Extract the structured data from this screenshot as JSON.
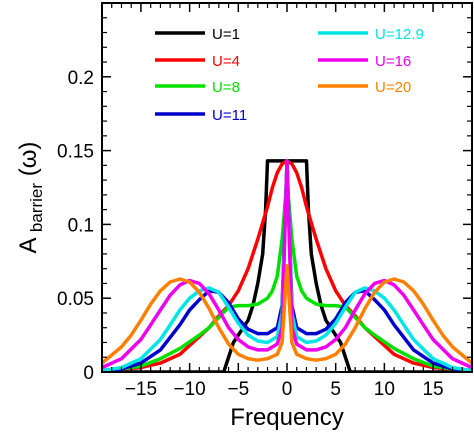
{
  "chart_data": {
    "type": "line",
    "xlabel": "Frequency",
    "ylabel_main": "A",
    "ylabel_sub": "barrier",
    "ylabel_arg": "(ω)",
    "xlim": [
      -19,
      19
    ],
    "ylim": [
      0,
      0.25
    ],
    "xticks": [
      -15,
      -10,
      -5,
      0,
      5,
      10,
      15
    ],
    "xtick_labels": [
      "−15",
      "−10",
      "−5",
      "0",
      "5",
      "10",
      "15"
    ],
    "yticks": [
      0,
      0.05,
      0.1,
      0.15,
      0.2
    ],
    "ytick_labels": [
      "0",
      "0.05",
      "0.1",
      "0.15",
      "0.2"
    ],
    "grid": false,
    "legend_placement": "top",
    "series": [
      {
        "name": "U=1",
        "color": "#000000",
        "x": [
          -19,
          -6.5,
          -6.0,
          -5.5,
          -5.0,
          -4.5,
          -4.0,
          -3.5,
          -3.0,
          -2.5,
          -2.2,
          -2.0,
          0.0,
          2.0,
          2.2,
          2.5,
          3.0,
          3.5,
          4.0,
          4.5,
          5.0,
          5.5,
          6.0,
          6.5,
          19
        ],
        "y": [
          0,
          0,
          0.01,
          0.02,
          0.025,
          0.03,
          0.035,
          0.045,
          0.06,
          0.08,
          0.11,
          0.143,
          0.143,
          0.143,
          0.11,
          0.08,
          0.06,
          0.045,
          0.035,
          0.03,
          0.025,
          0.02,
          0.01,
          0,
          0
        ]
      },
      {
        "name": "U=4",
        "color": "#ff0000",
        "x": [
          -19,
          -17,
          -15,
          -13,
          -11,
          -9,
          -8,
          -7,
          -6,
          -5,
          -4,
          -3,
          -2,
          -1.5,
          -1,
          -0.5,
          0,
          0.5,
          1,
          1.5,
          2,
          3,
          4,
          5,
          6,
          7,
          8,
          9,
          11,
          13,
          15,
          17,
          19
        ],
        "y": [
          0.001,
          0.002,
          0.003,
          0.006,
          0.012,
          0.024,
          0.03,
          0.038,
          0.045,
          0.055,
          0.07,
          0.09,
          0.112,
          0.125,
          0.135,
          0.141,
          0.143,
          0.141,
          0.135,
          0.125,
          0.112,
          0.09,
          0.07,
          0.055,
          0.045,
          0.038,
          0.03,
          0.024,
          0.012,
          0.006,
          0.003,
          0.002,
          0.001
        ]
      },
      {
        "name": "U=8",
        "color": "#00e000",
        "x": [
          -19,
          -17,
          -15,
          -13,
          -11,
          -9,
          -8,
          -7,
          -6,
          -5,
          -4,
          -3,
          -2,
          -1.5,
          -1,
          -0.5,
          0,
          0.5,
          1,
          1.5,
          2,
          3,
          4,
          5,
          6,
          7,
          8,
          9,
          11,
          13,
          15,
          17,
          19
        ],
        "y": [
          0.001,
          0.002,
          0.004,
          0.009,
          0.016,
          0.025,
          0.03,
          0.037,
          0.044,
          0.045,
          0.045,
          0.046,
          0.05,
          0.055,
          0.065,
          0.09,
          0.13,
          0.09,
          0.065,
          0.055,
          0.05,
          0.046,
          0.045,
          0.045,
          0.044,
          0.037,
          0.03,
          0.025,
          0.016,
          0.009,
          0.004,
          0.002,
          0.001
        ]
      },
      {
        "name": "U=11",
        "color": "#0000cc",
        "x": [
          -19,
          -17,
          -15,
          -13,
          -11,
          -10,
          -9,
          -8,
          -7,
          -6,
          -5,
          -4,
          -3,
          -2,
          -1,
          -0.5,
          0,
          0.5,
          1,
          2,
          3,
          4,
          5,
          6,
          7,
          8,
          9,
          10,
          11,
          13,
          15,
          17,
          19
        ],
        "y": [
          0.001,
          0.002,
          0.006,
          0.015,
          0.032,
          0.042,
          0.049,
          0.055,
          0.054,
          0.047,
          0.036,
          0.029,
          0.026,
          0.026,
          0.03,
          0.045,
          0.143,
          0.045,
          0.03,
          0.026,
          0.026,
          0.029,
          0.036,
          0.047,
          0.054,
          0.055,
          0.049,
          0.042,
          0.032,
          0.015,
          0.006,
          0.002,
          0.001
        ]
      },
      {
        "name": "U=12.9",
        "color": "#00e5e5",
        "x": [
          -19,
          -17,
          -15,
          -13,
          -12,
          -11,
          -10,
          -9,
          -8,
          -7,
          -6,
          -5,
          -4,
          -3,
          -2,
          -1,
          -0.5,
          0,
          0.5,
          1,
          2,
          3,
          4,
          5,
          6,
          7,
          8,
          9,
          10,
          11,
          12,
          13,
          15,
          17,
          19
        ],
        "y": [
          0.001,
          0.003,
          0.009,
          0.022,
          0.032,
          0.042,
          0.05,
          0.055,
          0.057,
          0.054,
          0.044,
          0.033,
          0.025,
          0.021,
          0.02,
          0.024,
          0.04,
          0.143,
          0.04,
          0.024,
          0.02,
          0.021,
          0.025,
          0.033,
          0.044,
          0.054,
          0.057,
          0.055,
          0.05,
          0.042,
          0.032,
          0.022,
          0.009,
          0.003,
          0.001
        ]
      },
      {
        "name": "U=16",
        "color": "#ee00ee",
        "x": [
          -19,
          -17,
          -15,
          -14,
          -13,
          -12,
          -11,
          -10,
          -9,
          -8,
          -7,
          -6,
          -5,
          -4,
          -3,
          -2,
          -1,
          -0.5,
          0,
          0.5,
          1,
          2,
          3,
          4,
          5,
          6,
          7,
          8,
          9,
          10,
          11,
          12,
          13,
          14,
          15,
          17,
          19
        ],
        "y": [
          0.003,
          0.009,
          0.022,
          0.032,
          0.042,
          0.052,
          0.059,
          0.062,
          0.06,
          0.053,
          0.042,
          0.03,
          0.022,
          0.017,
          0.015,
          0.015,
          0.019,
          0.03,
          0.143,
          0.03,
          0.019,
          0.015,
          0.015,
          0.017,
          0.022,
          0.03,
          0.042,
          0.053,
          0.06,
          0.062,
          0.059,
          0.052,
          0.042,
          0.032,
          0.022,
          0.009,
          0.003
        ]
      },
      {
        "name": "U=20",
        "color": "#ff8000",
        "x": [
          -19,
          -17,
          -16,
          -15,
          -14,
          -13,
          -12,
          -11,
          -10,
          -9,
          -8,
          -7,
          -6,
          -5,
          -4,
          -3,
          -2,
          -1,
          -0.5,
          0,
          0.5,
          1,
          2,
          3,
          4,
          5,
          6,
          7,
          8,
          9,
          10,
          11,
          12,
          13,
          14,
          15,
          16,
          17,
          19
        ],
        "y": [
          0.006,
          0.017,
          0.025,
          0.035,
          0.046,
          0.055,
          0.061,
          0.063,
          0.061,
          0.054,
          0.043,
          0.03,
          0.019,
          0.012,
          0.009,
          0.008,
          0.009,
          0.012,
          0.02,
          0.072,
          0.02,
          0.012,
          0.009,
          0.008,
          0.009,
          0.012,
          0.019,
          0.03,
          0.043,
          0.054,
          0.061,
          0.063,
          0.061,
          0.055,
          0.046,
          0.035,
          0.025,
          0.017,
          0.006
        ]
      }
    ]
  }
}
